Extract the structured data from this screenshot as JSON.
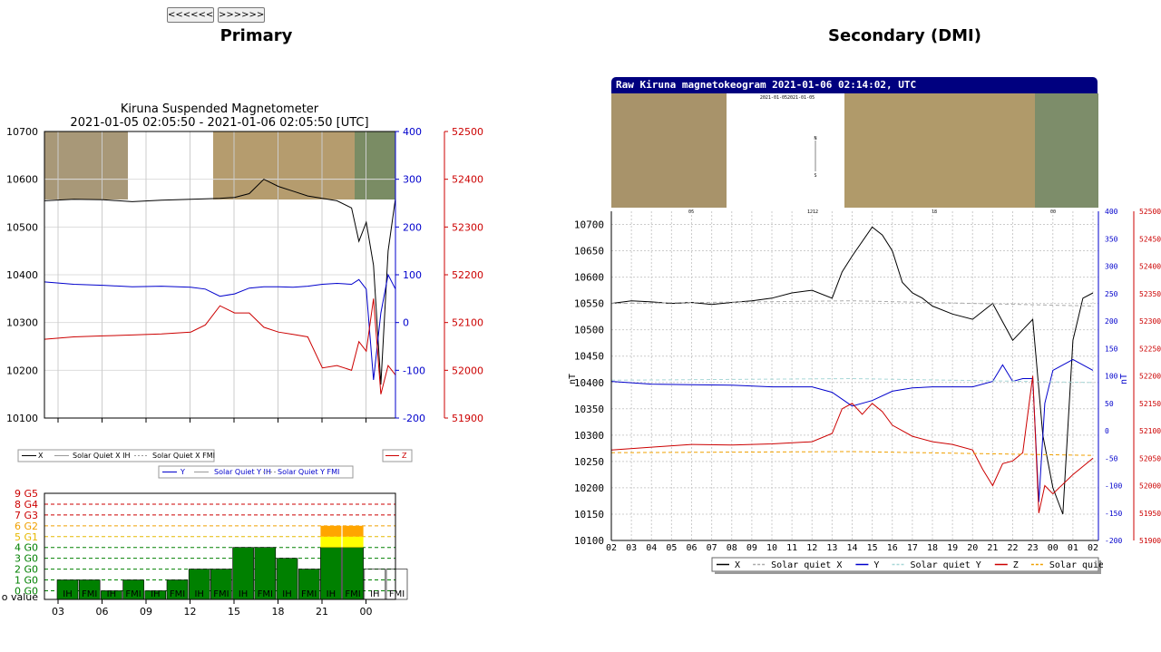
{
  "nav": {
    "prev_label": "<<<<<<",
    "next_label": ">>>>>>"
  },
  "headings": {
    "primary": "Primary",
    "secondary": "Secondary (DMI)"
  },
  "colors": {
    "x": "#000000",
    "y": "#0000cc",
    "z": "#cc0000",
    "solar_quiet": "#999999",
    "bar_green": "#008000",
    "bar_orange": "#ffa500",
    "bar_yellow": "#ffff00",
    "dmi_title_bg": "#00007f"
  },
  "icons": [
    "prev-arrow-button",
    "next-arrow-button"
  ],
  "chart_data": [
    {
      "type": "line",
      "title": "Kiruna Suspended Magnetometer",
      "subtitle": "2021-01-05 02:05:50 - 2021-01-06 02:05:50 [UTC]",
      "x_ticks": [
        "03",
        "06",
        "09",
        "12",
        "15",
        "18",
        "21",
        "00"
      ],
      "y_left": {
        "ticks": [
          10100,
          10200,
          10300,
          10400,
          10500,
          10600,
          10700
        ],
        "ylim": [
          10100,
          10700
        ]
      },
      "y_right_blue": {
        "ticks": [
          -200,
          -100,
          0,
          100,
          200,
          300,
          400
        ],
        "ylim": [
          -200,
          400
        ]
      },
      "y_right_red": {
        "ticks": [
          51900,
          52000,
          52100,
          52200,
          52300,
          52400,
          52500
        ],
        "ylim": [
          51900,
          52500
        ]
      },
      "legend": {
        "row1": [
          "X",
          "Solar Quiet X IH",
          "Solar Quiet X FMI"
        ],
        "row2": [
          "Y",
          "Solar Quiet Y IH",
          "Solar Quiet Y FMI"
        ],
        "z": "Z"
      },
      "series": [
        {
          "name": "X",
          "axis": "left",
          "hours": [
            0,
            2,
            4,
            6,
            8,
            10,
            12,
            13,
            14,
            15,
            16,
            17,
            18,
            19,
            20,
            21,
            21.5,
            22,
            22.5,
            23,
            23.5,
            24
          ],
          "values": [
            10555,
            10558,
            10557,
            10553,
            10556,
            10558,
            10560,
            10562,
            10570,
            10600,
            10585,
            10575,
            10565,
            10560,
            10555,
            10540,
            10470,
            10510,
            10420,
            10170,
            10450,
            10560
          ]
        },
        {
          "name": "Y",
          "axis": "blue",
          "hours": [
            0,
            2,
            4,
            6,
            8,
            10,
            11,
            12,
            13,
            14,
            15,
            16,
            17,
            18,
            19,
            20,
            21,
            21.5,
            22,
            22.5,
            23,
            23.5,
            24
          ],
          "values": [
            85,
            80,
            78,
            75,
            76,
            74,
            70,
            55,
            60,
            72,
            75,
            75,
            74,
            76,
            80,
            82,
            80,
            90,
            70,
            -120,
            20,
            100,
            70
          ]
        },
        {
          "name": "Z",
          "axis": "red",
          "hours": [
            0,
            2,
            4,
            6,
            8,
            10,
            11,
            12,
            13,
            14,
            15,
            16,
            17,
            18,
            19,
            20,
            21,
            21.5,
            22,
            22.5,
            23,
            23.5,
            24
          ],
          "values": [
            52065,
            52070,
            52072,
            52074,
            52076,
            52080,
            52095,
            52135,
            52120,
            52120,
            52090,
            52080,
            52075,
            52070,
            52005,
            52010,
            52000,
            52060,
            52040,
            52150,
            51950,
            52010,
            51990
          ]
        }
      ]
    },
    {
      "type": "bar",
      "title": "",
      "y_labels": [
        "o value",
        "0 G0",
        "1 G0",
        "2 G0",
        "3 G0",
        "4 G0",
        "5 G1",
        "6 G2",
        "7 G3",
        "8 G4",
        "9 G5"
      ],
      "x_ticks": [
        "03",
        "06",
        "09",
        "12",
        "15",
        "18",
        "21",
        "00"
      ],
      "bars": [
        {
          "source": "IH",
          "kp": 1
        },
        {
          "source": "FMI",
          "kp": 1
        },
        {
          "source": "IH",
          "kp": 0
        },
        {
          "source": "FMI",
          "kp": 1
        },
        {
          "source": "IH",
          "kp": 0
        },
        {
          "source": "FMI",
          "kp": 1
        },
        {
          "source": "IH",
          "kp": 2
        },
        {
          "source": "FMI",
          "kp": 2
        },
        {
          "source": "IH",
          "kp": 4
        },
        {
          "source": "FMI",
          "kp": 4
        },
        {
          "source": "IH",
          "kp": 3
        },
        {
          "source": "FMI",
          "kp": 2
        },
        {
          "source": "IH",
          "kp": 6
        },
        {
          "source": "FMI",
          "kp": 6
        },
        {
          "source": "IH",
          "kp": 2
        },
        {
          "source": "FMI",
          "kp": 2
        }
      ]
    },
    {
      "type": "line",
      "title": "Raw Kiruna magnetokeogram 2021-01-06 02:14:02, UTC",
      "keogram_labels": [
        "2021-01-052021-01-05",
        "N",
        "S",
        "06",
        "1212",
        "18",
        "00"
      ],
      "ylabel": "nT",
      "ylabel_right": "nT",
      "x_ticks": [
        "02",
        "03",
        "04",
        "05",
        "06",
        "07",
        "08",
        "09",
        "10",
        "11",
        "12",
        "13",
        "14",
        "15",
        "16",
        "17",
        "18",
        "19",
        "20",
        "21",
        "22",
        "23",
        "00",
        "01",
        "02"
      ],
      "y_left": {
        "ticks": [
          10100,
          10150,
          10200,
          10250,
          10300,
          10350,
          10400,
          10450,
          10500,
          10550,
          10600,
          10650,
          10700
        ],
        "ylim": [
          10100,
          10725
        ]
      },
      "y_right_blue": {
        "ticks": [
          -200,
          -150,
          -100,
          -50,
          0,
          50,
          100,
          150,
          200,
          250,
          300,
          350,
          400
        ],
        "ylim": [
          -200,
          400
        ]
      },
      "y_right_red": {
        "ticks": [
          51900,
          51950,
          52000,
          52050,
          52100,
          52150,
          52200,
          52250,
          52300,
          52350,
          52400,
          52450,
          52500
        ],
        "ylim": [
          51900,
          52500
        ]
      },
      "legend": [
        "X",
        "Solar quiet X",
        "Y",
        "Solar quiet Y",
        "Z",
        "Solar quiet Z"
      ],
      "series": [
        {
          "name": "X",
          "axis": "left",
          "hours": [
            0,
            1,
            2,
            3,
            4,
            5,
            6,
            7,
            8,
            9,
            10,
            11,
            11.5,
            12,
            13,
            13.5,
            14,
            14.5,
            15,
            15.5,
            16,
            17,
            18,
            19,
            20,
            20.5,
            21,
            21.5,
            22,
            22.5,
            23,
            23.5,
            24
          ],
          "values": [
            10550,
            10555,
            10553,
            10550,
            10552,
            10548,
            10552,
            10555,
            10560,
            10570,
            10575,
            10560,
            10610,
            10640,
            10695,
            10680,
            10650,
            10590,
            10570,
            10560,
            10545,
            10530,
            10520,
            10550,
            10480,
            10500,
            10520,
            10300,
            10200,
            10150,
            10480,
            10560,
            10570
          ]
        },
        {
          "name": "Solar quiet X",
          "axis": "left",
          "dashed": true,
          "hours": [
            0,
            12,
            24
          ],
          "values": [
            10550,
            10555,
            10545
          ]
        },
        {
          "name": "Y",
          "axis": "blue",
          "hours": [
            0,
            2,
            4,
            6,
            8,
            10,
            11,
            12,
            13,
            14,
            15,
            16,
            17,
            18,
            19,
            19.5,
            20,
            20.5,
            21,
            21.3,
            21.6,
            22,
            23,
            24
          ],
          "values": [
            90,
            85,
            84,
            83,
            80,
            80,
            70,
            45,
            55,
            72,
            78,
            80,
            80,
            80,
            90,
            120,
            90,
            95,
            95,
            -130,
            50,
            110,
            130,
            110
          ]
        },
        {
          "name": "Solar quiet Y",
          "axis": "blue",
          "dashed": true,
          "hours": [
            0,
            12,
            24
          ],
          "values": [
            92,
            95,
            88
          ]
        },
        {
          "name": "Z",
          "axis": "red",
          "hours": [
            0,
            2,
            4,
            6,
            8,
            10,
            11,
            11.5,
            12,
            12.5,
            13,
            13.5,
            14,
            15,
            16,
            17,
            18,
            18.5,
            19,
            19.5,
            20,
            20.5,
            21,
            21.3,
            21.6,
            22,
            23,
            24
          ],
          "values": [
            52065,
            52070,
            52075,
            52074,
            52076,
            52080,
            52095,
            52140,
            52150,
            52130,
            52150,
            52135,
            52110,
            52090,
            52080,
            52075,
            52065,
            52030,
            52000,
            52040,
            52045,
            52060,
            52200,
            51950,
            52000,
            51985,
            52020,
            52050
          ]
        },
        {
          "name": "Solar quiet Z",
          "axis": "red",
          "dashed": true,
          "hours": [
            0,
            12,
            24
          ],
          "values": [
            52060,
            52062,
            52055
          ]
        }
      ]
    }
  ]
}
